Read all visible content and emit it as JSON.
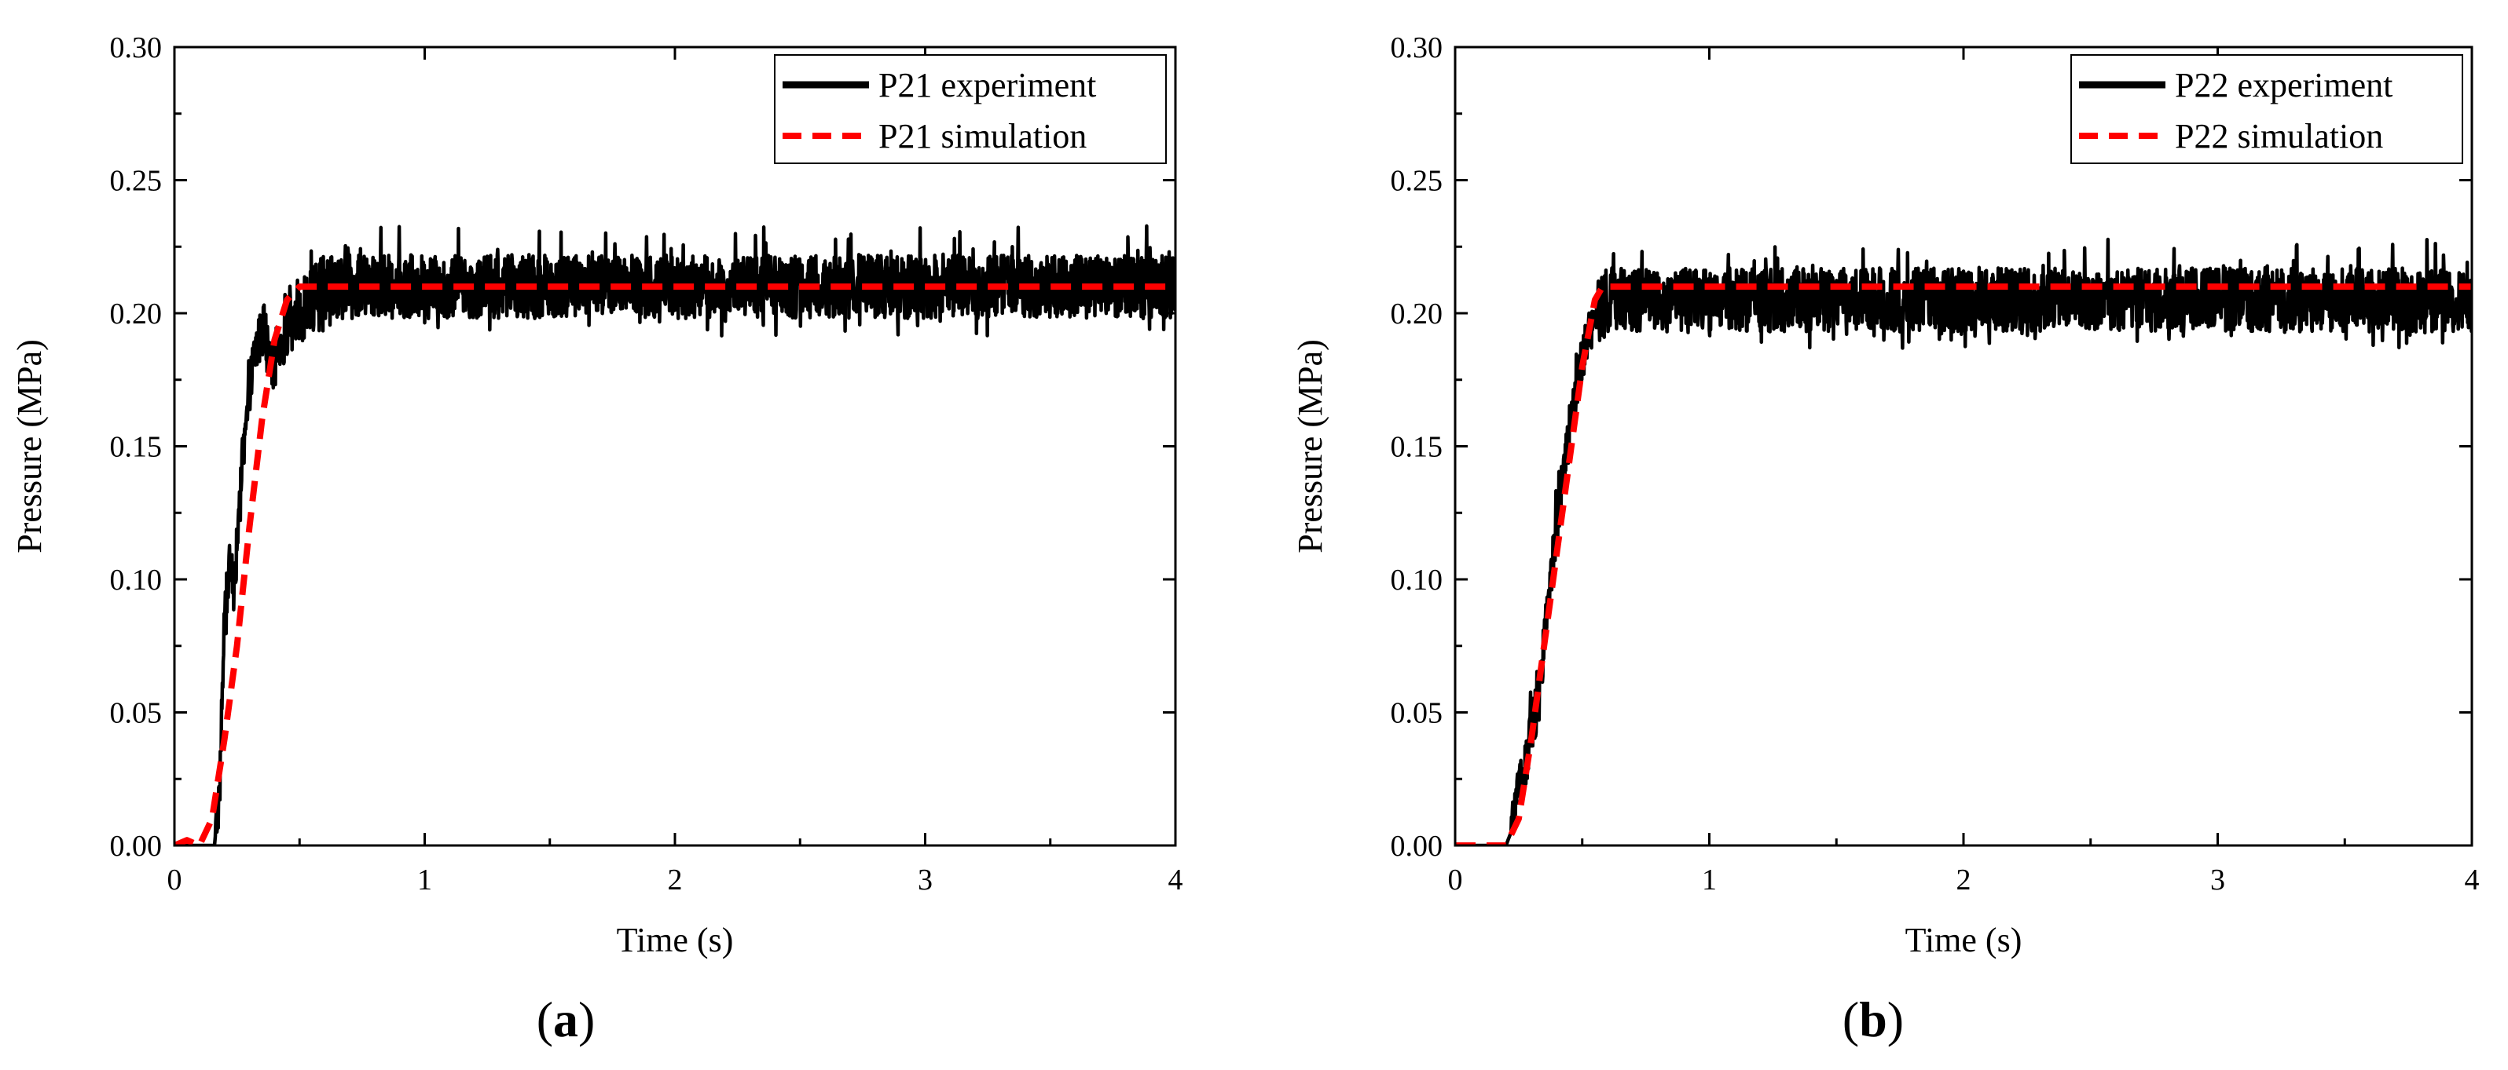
{
  "figure": {
    "panel_labels": [
      "(a)",
      "(b)"
    ]
  },
  "chart_data": [
    {
      "id": "a",
      "type": "line",
      "panel_label": "a",
      "xlabel": "Time (s)",
      "ylabel": "Pressure (MPa)",
      "xlim": [
        0,
        4
      ],
      "ylim": [
        0,
        0.3
      ],
      "x_ticks": [
        0,
        1,
        2,
        3,
        4
      ],
      "x_tick_labels": [
        "0",
        "1",
        "2",
        "3",
        "4"
      ],
      "y_ticks": [
        0,
        0.05,
        0.1,
        0.15,
        0.2,
        0.25,
        0.3
      ],
      "y_tick_labels": [
        "0.00",
        "0.05",
        "0.10",
        "0.15",
        "0.20",
        "0.25",
        "0.30"
      ],
      "legend_position": "top-right",
      "series": [
        {
          "name": "P21 experiment",
          "style": "solid",
          "color": "#000000",
          "x": [
            0,
            0.16,
            0.18,
            0.2,
            0.22,
            0.24,
            0.26,
            0.28,
            0.3,
            0.32,
            0.34,
            0.36,
            0.38,
            0.4,
            0.42,
            0.44,
            0.46,
            0.5,
            0.55,
            0.6,
            4.0
          ],
          "y": [
            0,
            0,
            0.02,
            0.085,
            0.105,
            0.095,
            0.13,
            0.15,
            0.17,
            0.185,
            0.19,
            0.195,
            0.18,
            0.182,
            0.19,
            0.19,
            0.196,
            0.2,
            0.205,
            0.21,
            0.21
          ],
          "noise_amplitude": 0.012,
          "steady_value": 0.21
        },
        {
          "name": "P21 simulation",
          "style": "dashed",
          "color": "#ff0000",
          "x": [
            0,
            0.05,
            0.1,
            0.15,
            0.2,
            0.25,
            0.3,
            0.35,
            0.4,
            0.45,
            0.5,
            4.0
          ],
          "y": [
            0,
            0.002,
            0.0,
            0.01,
            0.04,
            0.075,
            0.12,
            0.16,
            0.19,
            0.205,
            0.21,
            0.21
          ]
        }
      ]
    },
    {
      "id": "b",
      "type": "line",
      "panel_label": "b",
      "xlabel": "Time (s)",
      "ylabel": "Pressure (MPa)",
      "xlim": [
        0,
        4
      ],
      "ylim": [
        0,
        0.3
      ],
      "x_ticks": [
        0,
        1,
        2,
        3,
        4
      ],
      "x_tick_labels": [
        "0",
        "1",
        "2",
        "3",
        "4"
      ],
      "y_ticks": [
        0,
        0.05,
        0.1,
        0.15,
        0.2,
        0.25,
        0.3
      ],
      "y_tick_labels": [
        "0.00",
        "0.05",
        "0.10",
        "0.15",
        "0.20",
        "0.25",
        "0.30"
      ],
      "legend_position": "top-right",
      "series": [
        {
          "name": "P22 experiment",
          "style": "solid",
          "color": "#000000",
          "x": [
            0,
            0.2,
            0.22,
            0.25,
            0.28,
            0.3,
            0.33,
            0.36,
            0.4,
            0.44,
            0.48,
            0.52,
            0.56,
            0.6,
            4.0
          ],
          "y": [
            0,
            0,
            0.005,
            0.02,
            0.03,
            0.045,
            0.055,
            0.085,
            0.12,
            0.15,
            0.175,
            0.19,
            0.2,
            0.205,
            0.205
          ],
          "noise_amplitude": 0.012,
          "steady_value": 0.205
        },
        {
          "name": "P22 simulation",
          "style": "dashed",
          "color": "#ff0000",
          "x": [
            0,
            0.1,
            0.2,
            0.25,
            0.3,
            0.35,
            0.4,
            0.45,
            0.5,
            0.55,
            0.58,
            4.0
          ],
          "y": [
            0,
            0.0,
            0.0,
            0.01,
            0.04,
            0.075,
            0.11,
            0.145,
            0.18,
            0.205,
            0.21,
            0.21
          ]
        }
      ]
    }
  ]
}
